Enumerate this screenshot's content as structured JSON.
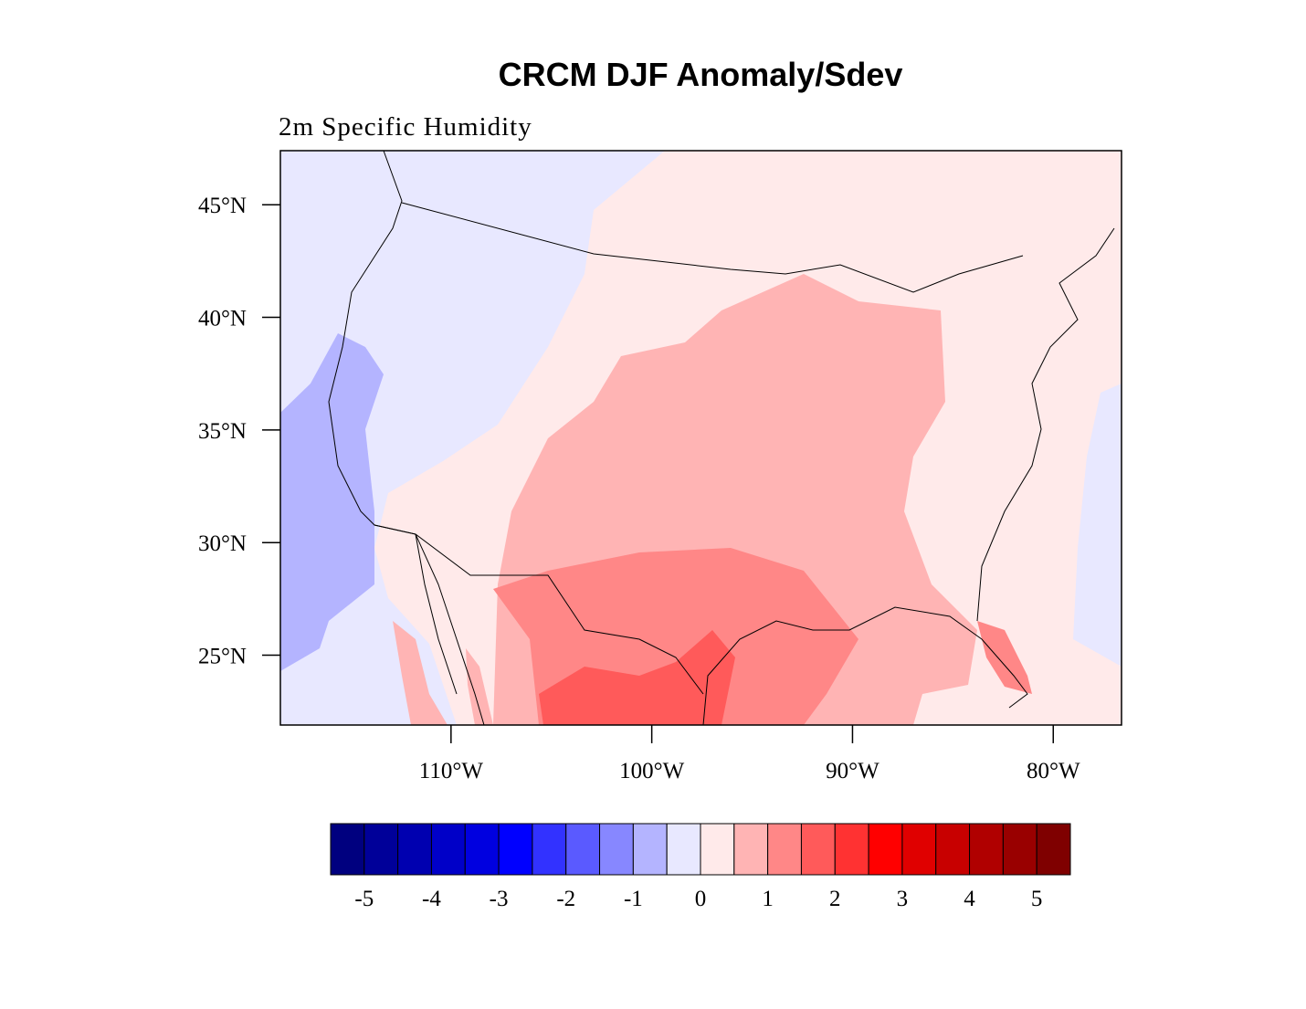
{
  "title": "CRCM DJF Anomaly/Sdev",
  "subtitle": "2m Specific Humidity",
  "map": {
    "xlim": [
      -118.5,
      -76.6
    ],
    "ylim": [
      21.9,
      47.4
    ],
    "xticks": [
      {
        "value": -110,
        "label": "110°W"
      },
      {
        "value": -100,
        "label": "100°W"
      },
      {
        "value": -90,
        "label": "90°W"
      },
      {
        "value": -80,
        "label": "80°W"
      }
    ],
    "yticks": [
      {
        "value": 25,
        "label": "25°N"
      },
      {
        "value": 30,
        "label": "30°N"
      },
      {
        "value": 35,
        "label": "35°N"
      },
      {
        "value": 40,
        "label": "40°N"
      },
      {
        "value": 45,
        "label": "45°N"
      }
    ]
  },
  "colorbar": {
    "levels": [
      -5,
      -4.5,
      -4,
      -3.5,
      -3,
      -2.5,
      -2,
      -1.5,
      -1,
      -0.5,
      0,
      0.5,
      1,
      1.5,
      2,
      2.5,
      3,
      3.5,
      4,
      4.5,
      5
    ],
    "colors": [
      "#00007f",
      "#000099",
      "#0000b0",
      "#0000c8",
      "#0000e0",
      "#0000ff",
      "#3232ff",
      "#5a5aff",
      "#8787ff",
      "#b4b4ff",
      "#e8e8ff",
      "#ffeaea",
      "#ffb4b4",
      "#ff8787",
      "#ff5a5a",
      "#ff3232",
      "#ff0000",
      "#e00000",
      "#c80000",
      "#b00000",
      "#990000",
      "#7f0000"
    ],
    "ticks": [
      -5,
      -4,
      -3,
      -2,
      -1,
      0,
      1,
      2,
      3,
      4,
      5
    ]
  }
}
